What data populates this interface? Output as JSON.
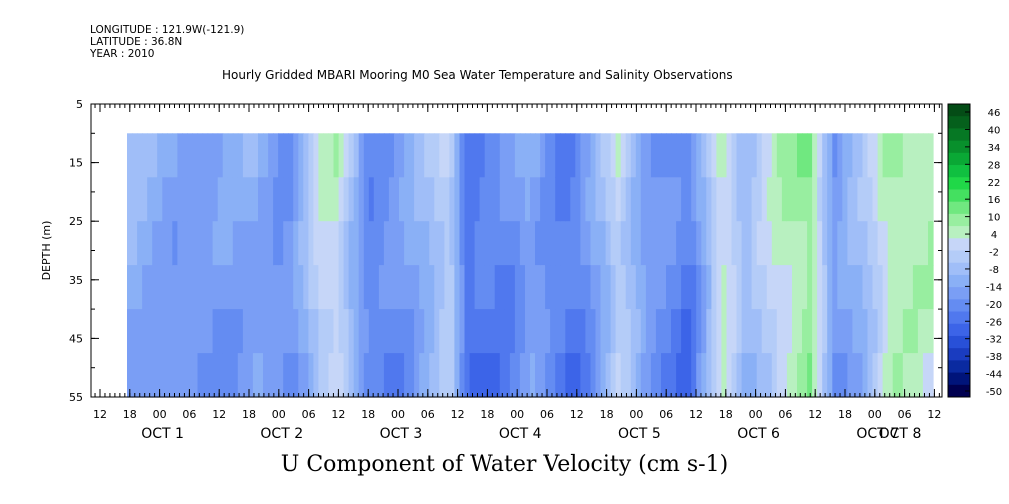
{
  "meta": {
    "longitude": "LONGITUDE : 121.9W(-121.9)",
    "latitude": "LATITUDE : 36.8N",
    "year": "YEAR : 2010"
  },
  "chart_data": {
    "type": "heatmap",
    "title": "Hourly Gridded MBARI Mooring M0 Sea Water Temperature and Salinity Observations",
    "variable_label": "U Component of Water Velocity (cm s-1)",
    "xlabel": "",
    "ylabel": "DEPTH (m)",
    "ylim": [
      55,
      5
    ],
    "y_ticks": [
      "5",
      "15",
      "25",
      "35",
      "45",
      "55"
    ],
    "hour_ticks": [
      "12",
      "18",
      "00",
      "06",
      "12",
      "18",
      "00",
      "06",
      "12",
      "18",
      "00",
      "06",
      "12",
      "18",
      "00",
      "06",
      "12",
      "18",
      "00",
      "06",
      "12",
      "18",
      "00",
      "06",
      "12",
      "18",
      "00",
      "06",
      "12",
      "18",
      "00",
      "06"
    ],
    "day_labels": [
      "OCT  1",
      "OCT  2",
      "OCT  3",
      "OCT  4",
      "OCT  5",
      "OCT  6",
      "OCT  7",
      "OCT  8"
    ],
    "data_depth_range": [
      10,
      55
    ],
    "colorbar": {
      "levels": [
        "46",
        "40",
        "34",
        "28",
        "22",
        "16",
        "10",
        "4",
        "-2",
        "-8",
        "-14",
        "-20",
        "-26",
        "-32",
        "-38",
        "-44",
        "-50"
      ],
      "range": [
        -50,
        50
      ],
      "colors": [
        "#000050",
        "#00147a",
        "#0a2aa0",
        "#1a3cc0",
        "#2850d8",
        "#3c64e8",
        "#5078ee",
        "#648cf2",
        "#7a9ef5",
        "#8ab0f6",
        "#a0bef8",
        "#b4ccf8",
        "#c6d6f8",
        "#b8f0c0",
        "#98eea0",
        "#70e880",
        "#44e060",
        "#20d848",
        "#10c040",
        "#0aa835",
        "#08902c",
        "#067824",
        "#05601c",
        "#044c16"
      ]
    },
    "bands_note": "U velocity mostly -5 to -30 (blue); positive (green, up to ~20) in columns near OCT 2 18-00, OCT 3 18-00, OCT 5 18-00, OCT 6 12-18, OCT 7 06-18 and OCT 8",
    "columns": [
      {
        "t": 0.0,
        "u": -8
      },
      {
        "t": 0.05,
        "u": -12
      },
      {
        "t": 0.1,
        "u": -14
      },
      {
        "t": 0.16,
        "u": -10
      },
      {
        "t": 0.2,
        "u": -16
      },
      {
        "t": 0.24,
        "u": 4
      },
      {
        "t": 0.26,
        "u": 6
      },
      {
        "t": 0.3,
        "u": -18
      },
      {
        "t": 0.34,
        "u": -14
      },
      {
        "t": 0.4,
        "u": 2
      },
      {
        "t": 0.42,
        "u": -22
      },
      {
        "t": 0.47,
        "u": -18
      },
      {
        "t": 0.5,
        "u": -10
      },
      {
        "t": 0.55,
        "u": -22
      },
      {
        "t": 0.58,
        "u": -12
      },
      {
        "t": 0.61,
        "u": 3
      },
      {
        "t": 0.65,
        "u": -14
      },
      {
        "t": 0.7,
        "u": -20
      },
      {
        "t": 0.74,
        "u": 8
      },
      {
        "t": 0.77,
        "u": -6
      },
      {
        "t": 0.81,
        "u": 6
      },
      {
        "t": 0.85,
        "u": 14
      },
      {
        "t": 0.88,
        "u": -14
      },
      {
        "t": 0.92,
        "u": -4
      },
      {
        "t": 0.95,
        "u": 10
      },
      {
        "t": 1.0,
        "u": 8
      }
    ]
  }
}
